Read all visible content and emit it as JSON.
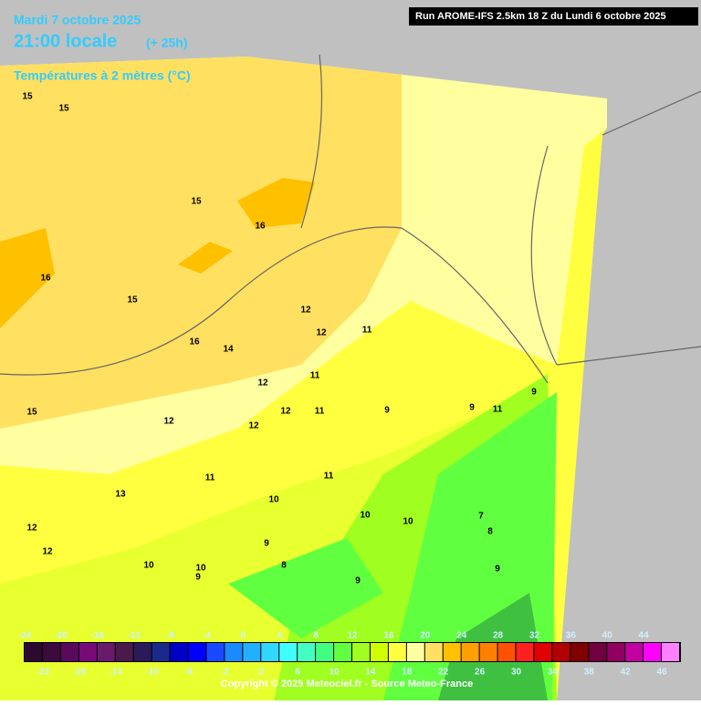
{
  "header": {
    "date": "Mardi 7 octobre 2025",
    "time": "21:00 locale",
    "offset": "(+ 25h)",
    "variable": "Températures à 2 mètres (°C)"
  },
  "run": "Run AROME-IFS 2.5km 18 Z du Lundi 6 octobre 2025",
  "contour_labels": [
    15,
    15,
    15,
    16,
    16,
    15,
    16,
    14,
    12,
    12,
    11,
    11,
    12,
    12,
    11,
    15,
    12,
    12,
    9,
    9,
    11,
    9,
    11,
    11,
    13,
    10,
    10,
    10,
    7,
    8,
    12,
    12,
    9,
    10,
    10,
    9,
    8,
    9,
    9
  ],
  "scale": {
    "colors": [
      "#2d0a2d",
      "#3d0a3d",
      "#5a0a5a",
      "#780a78",
      "#6a1a6a",
      "#4a1a4a",
      "#2a1a5a",
      "#1a2a8a",
      "#0000c8",
      "#0000ff",
      "#1a4aff",
      "#1a8aff",
      "#20b0ff",
      "#30d8ff",
      "#40ffff",
      "#40ffc0",
      "#40ff80",
      "#60ff40",
      "#a0ff20",
      "#d0ff00",
      "#ffff40",
      "#ffffa0",
      "#ffe060",
      "#ffc000",
      "#ffa000",
      "#ff8000",
      "#ff5000",
      "#ff2020",
      "#e00000",
      "#b00000",
      "#800000",
      "#700040",
      "#900060",
      "#c000a0",
      "#ff00ff",
      "#ff80ff"
    ],
    "labels_top": [
      -24,
      -20,
      -16,
      -12,
      -8,
      -4,
      0,
      4,
      8,
      12,
      16,
      20,
      24,
      28,
      32,
      36,
      40,
      44
    ],
    "labels_bottom": [
      -22,
      -18,
      -14,
      -10,
      -6,
      -2,
      2,
      6,
      10,
      14,
      18,
      22,
      26,
      30,
      34,
      38,
      42,
      46
    ]
  },
  "copyright": "Copyright © 2025 Meteociel.fr - Source Meteo-France"
}
